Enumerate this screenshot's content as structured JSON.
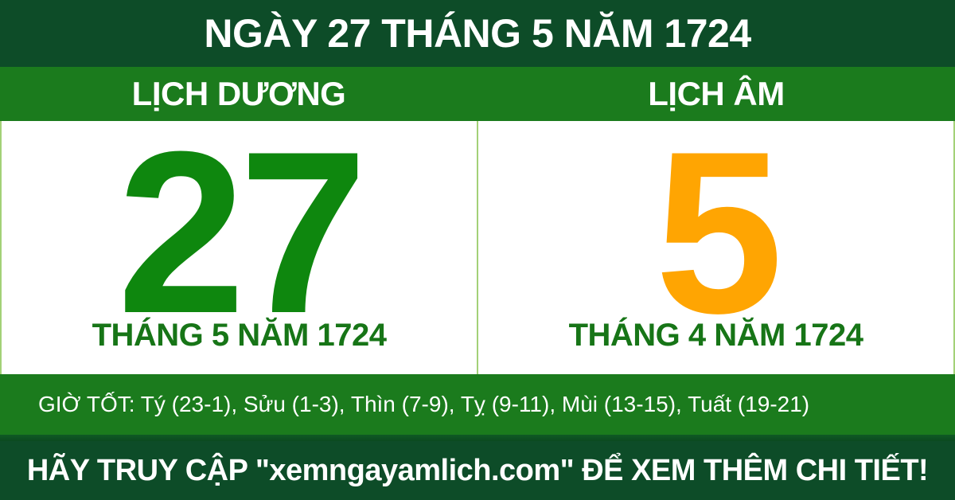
{
  "header": {
    "title": "NGÀY 27 THÁNG 5 NĂM 1724"
  },
  "calendar": {
    "solar": {
      "label": "LỊCH DƯƠNG",
      "day": "27",
      "month_year": "THÁNG 5 NĂM 1724"
    },
    "lunar": {
      "label": "LỊCH ÂM",
      "day": "5",
      "month_year": "THÁNG 4 NĂM 1724"
    }
  },
  "good_hours": {
    "text": "GIỜ TỐT: Tý (23-1), Sửu (1-3), Thìn (7-9), Tỵ (9-11), Mùi (13-15), Tuất (19-21)"
  },
  "footer": {
    "text": "HÃY TRUY CẬP \"xemngayamlich.com\" ĐỂ XEM THÊM CHI TIẾT!"
  },
  "colors": {
    "dark_green": "#0d4c28",
    "bright_green": "#1b7b1d",
    "solar_day_green": "#0e870e",
    "month_text_green": "#177517",
    "lunar_day_orange": "#ffa502",
    "divider_light_green": "#a3d177",
    "panel_background": "#ffffff",
    "text_white": "#ffffff"
  }
}
